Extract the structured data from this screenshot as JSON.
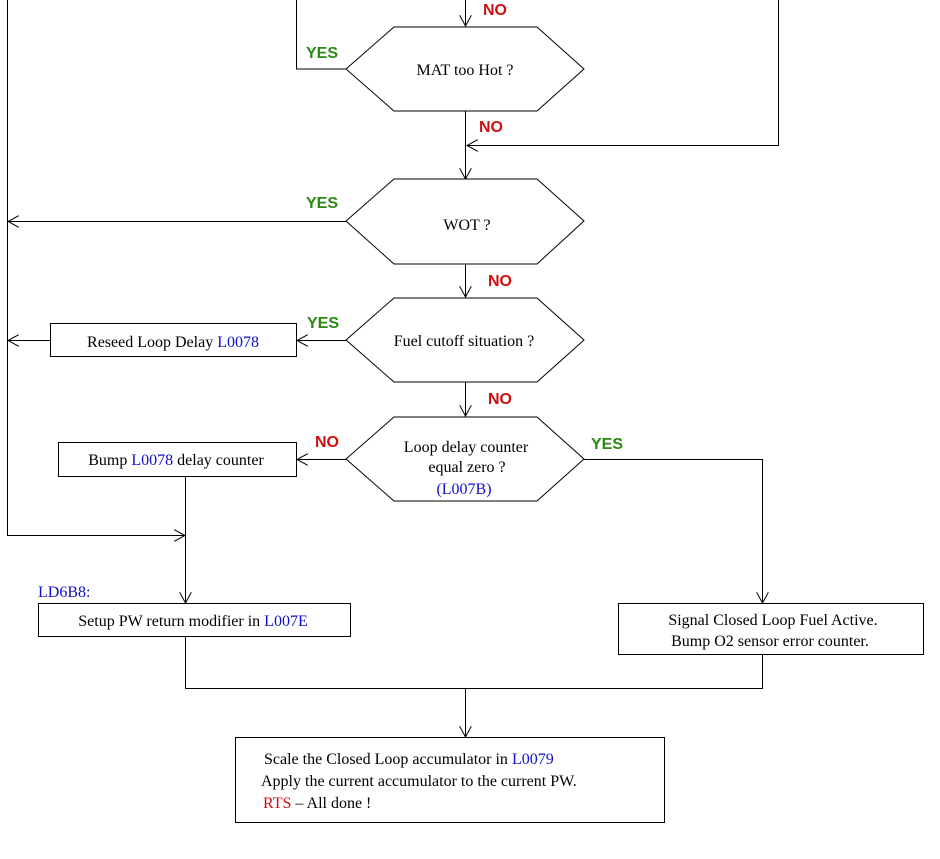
{
  "decisions": {
    "mat_too_hot": "MAT too Hot ?",
    "wot": "WOT ?",
    "fuel_cutoff": "Fuel cutoff situation ?",
    "loop_delay_line1": "Loop delay counter",
    "loop_delay_line2": "equal zero ?",
    "loop_delay_ref": "(L007B)"
  },
  "boxes": {
    "reseed_text": "Reseed Loop Delay ",
    "reseed_ref": "L0078",
    "bump_text1": "Bump ",
    "bump_ref": "L0078",
    "bump_text2": " delay counter",
    "setup_label": "LD6B8:",
    "setup_text": "Setup PW return modifier in ",
    "setup_ref": "L007E",
    "signal_line1": "Signal Closed Loop Fuel Active.",
    "signal_line2": "Bump O2 sensor error counter.",
    "scale_text": "Scale the Closed Loop accumulator in ",
    "scale_ref": "L0079",
    "apply_text": "Apply the current accumulator to the current  PW.",
    "rts": "RTS",
    "rts_rest": " –  All done !"
  },
  "labels": {
    "yes": "YES",
    "no": "NO"
  },
  "colors": {
    "yes": "#2a8a12",
    "no": "#d01010",
    "reference": "#1010c8",
    "rts": "#cc1010"
  }
}
